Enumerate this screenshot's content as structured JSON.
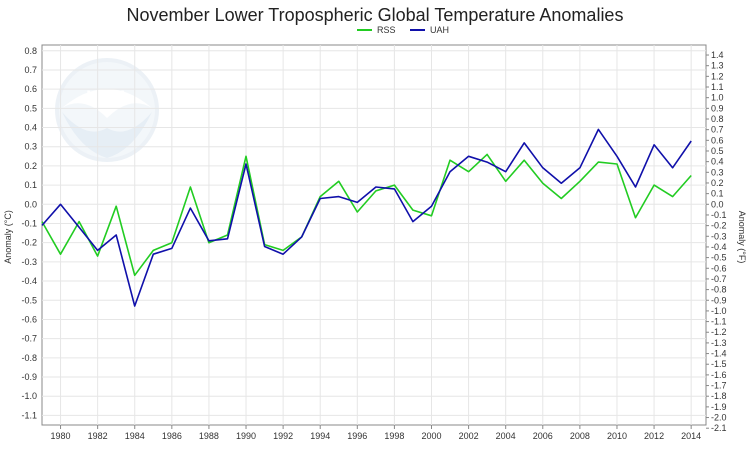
{
  "chart_data": {
    "type": "line",
    "title": "November Lower Tropospheric Global Temperature Anomalies",
    "ylabel_left": "Anomaly (°C)",
    "ylabel_right": "Anomaly (°F)",
    "ylim_c": [
      -1.15,
      0.83
    ],
    "ylim_f": [
      -2.07,
      1.494
    ],
    "xlim": [
      1979,
      2014.8
    ],
    "grid": true,
    "legend_position": "top-center",
    "x": [
      1979,
      1980,
      1981,
      1982,
      1983,
      1984,
      1985,
      1986,
      1987,
      1988,
      1989,
      1990,
      1991,
      1992,
      1993,
      1994,
      1995,
      1996,
      1997,
      1998,
      1999,
      2000,
      2001,
      2002,
      2003,
      2004,
      2005,
      2006,
      2007,
      2008,
      2009,
      2010,
      2011,
      2012,
      2013,
      2014
    ],
    "series": [
      {
        "name": "RSS",
        "color": "#22cc22",
        "values": [
          -0.09,
          -0.26,
          -0.09,
          -0.27,
          -0.01,
          -0.37,
          -0.24,
          -0.2,
          0.09,
          -0.2,
          -0.16,
          0.25,
          -0.21,
          -0.24,
          -0.17,
          0.04,
          0.12,
          -0.04,
          0.07,
          0.1,
          -0.03,
          -0.06,
          0.23,
          0.17,
          0.26,
          0.12,
          0.23,
          0.11,
          0.03,
          0.12,
          0.22,
          0.21,
          -0.07,
          0.1,
          0.04,
          0.15
        ]
      },
      {
        "name": "UAH",
        "color": "#1010aa",
        "values": [
          -0.11,
          0.0,
          -0.12,
          -0.24,
          -0.16,
          -0.53,
          -0.26,
          -0.23,
          -0.02,
          -0.19,
          -0.18,
          0.21,
          -0.22,
          -0.26,
          -0.17,
          0.03,
          0.04,
          0.01,
          0.09,
          0.08,
          -0.09,
          -0.01,
          0.17,
          0.25,
          0.22,
          0.17,
          0.32,
          0.19,
          0.11,
          0.19,
          0.39,
          0.25,
          0.09,
          0.31,
          0.19,
          0.33
        ]
      }
    ],
    "x_ticks": [
      1980,
      1982,
      1984,
      1986,
      1988,
      1990,
      1992,
      1994,
      1996,
      1998,
      2000,
      2002,
      2004,
      2006,
      2008,
      2010,
      2012,
      2014
    ],
    "y_ticks_c": [
      "0.8",
      "0.7",
      "0.6",
      "0.5",
      "0.4",
      "0.3",
      "0.2",
      "0.1",
      "0.0",
      "-0.1",
      "-0.2",
      "-0.3",
      "-0.4",
      "-0.5",
      "-0.6",
      "-0.7",
      "-0.8",
      "-0.9",
      "-1.0",
      "-1.1"
    ],
    "y_ticks_f": [
      "1.4",
      "1.3",
      "1.2",
      "1.1",
      "1.0",
      "0.9",
      "0.8",
      "0.7",
      "0.6",
      "0.5",
      "0.4",
      "0.3",
      "0.2",
      "0.1",
      "0.0",
      "-0.1",
      "-0.2",
      "-0.3",
      "-0.4",
      "-0.5",
      "-0.6",
      "-0.7",
      "-0.8",
      "-0.9",
      "-1.0",
      "-1.1",
      "-1.2",
      "-1.3",
      "-1.4",
      "-1.5",
      "-1.6",
      "-1.7",
      "-1.8",
      "-1.9",
      "-2.0",
      "-2.1"
    ],
    "watermark": "NOAA"
  }
}
